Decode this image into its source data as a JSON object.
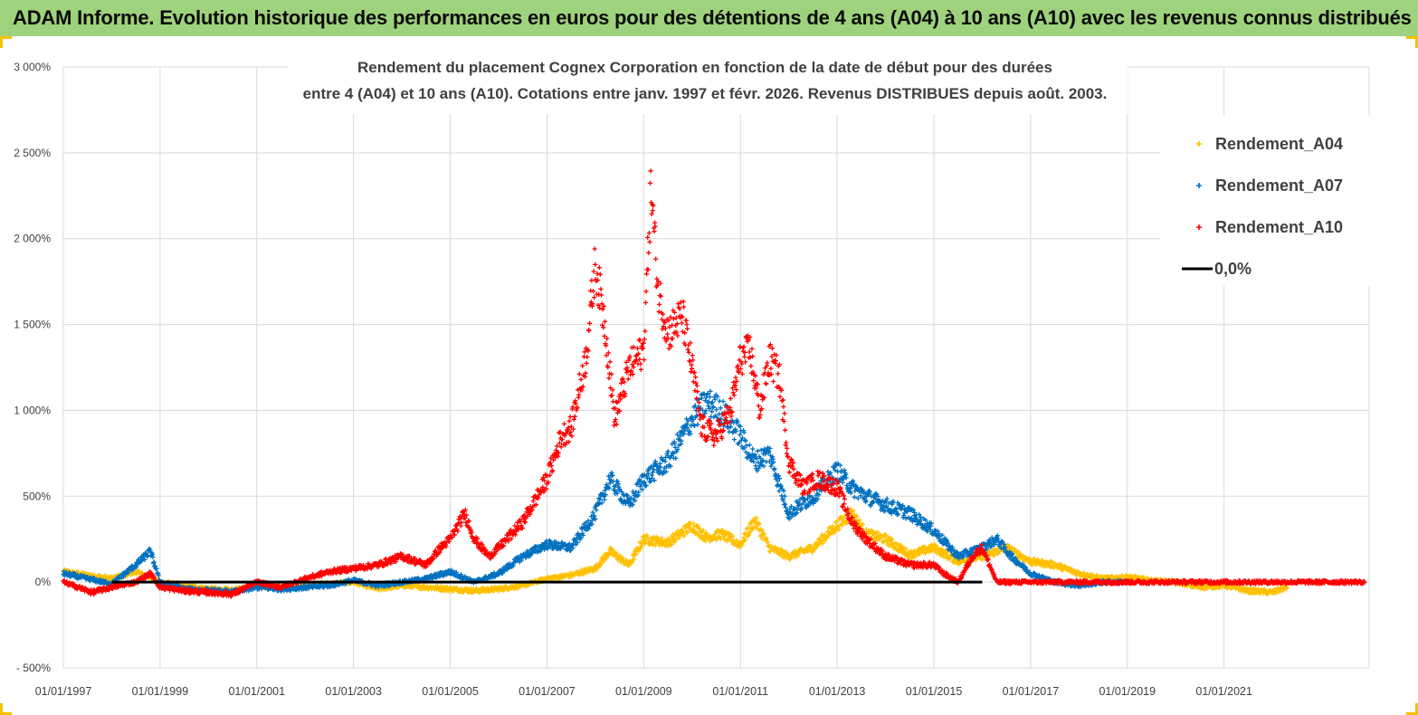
{
  "header": {
    "title": "ADAM Informe. Evolution historique des performances en euros pour des détentions de 4 ans (A04) à 10 ans (A10) avec les revenus connus distribués"
  },
  "colors": {
    "banner": "#9fd27c",
    "A04": "#ffc000",
    "A07": "#0070c0",
    "A10": "#ff0000",
    "zero_line": "#000000",
    "grid": "#d9d9d9"
  },
  "chart_data": {
    "type": "scatter",
    "title_lines": [
      "Rendement du placement Cognex Corporation en fonction de la date de début pour des durées",
      "entre 4 (A04) et 10 ans (A10).  Cotations entre janv. 1997 et févr. 2026. Revenus  DISTRIBUES depuis août. 2003."
    ],
    "xlabel": "",
    "ylabel": "",
    "ylim": [
      -500,
      3000
    ],
    "xlim": [
      1997.0,
      2024.0
    ],
    "y_ticks": [
      -500,
      0,
      500,
      1000,
      1500,
      2000,
      2500,
      3000
    ],
    "y_tick_labels": [
      "- 500%",
      "0%",
      "500%",
      "1 000%",
      "1 500%",
      "2 000%",
      "2 500%",
      "3 000%"
    ],
    "x_ticks": [
      1997,
      1999,
      2001,
      2003,
      2005,
      2007,
      2009,
      2011,
      2013,
      2015,
      2017,
      2019,
      2021
    ],
    "x_tick_labels": [
      "01/01/1997",
      "01/01/1999",
      "01/01/2001",
      "01/01/2003",
      "01/01/2005",
      "01/01/2007",
      "01/01/2009",
      "01/01/2011",
      "01/01/2013",
      "01/01/2015",
      "01/01/2017",
      "01/01/2019",
      "01/01/2021"
    ],
    "legend": {
      "position": "top-right",
      "entries": [
        "Rendement_A04",
        "Rendement_A07",
        "Rendement_A10",
        "0,0%"
      ]
    },
    "series": [
      {
        "name": "Rendement_A04",
        "x": [
          1997.0,
          1997.5,
          1998.0,
          1998.5,
          1998.8,
          1999.0,
          1999.5,
          2000.0,
          2000.5,
          2001.0,
          2001.5,
          2002.0,
          2002.5,
          2003.0,
          2003.5,
          2004.0,
          2004.5,
          2005.0,
          2005.5,
          2006.0,
          2006.5,
          2007.0,
          2007.5,
          2008.0,
          2008.3,
          2008.7,
          2009.0,
          2009.5,
          2010.0,
          2010.3,
          2010.6,
          2011.0,
          2011.3,
          2011.6,
          2012.0,
          2012.5,
          2013.0,
          2013.3,
          2013.6,
          2014.0,
          2014.5,
          2015.0,
          2015.5,
          2016.0,
          2016.5,
          2017.0,
          2017.5,
          2018.0,
          2018.5,
          2019.0,
          2019.5,
          2020.0,
          2020.5,
          2021.0,
          2021.5,
          2022.0,
          2022.3
        ],
        "values": [
          60,
          40,
          20,
          60,
          30,
          0,
          -20,
          -40,
          -50,
          -20,
          -30,
          -20,
          -10,
          0,
          -40,
          -20,
          -30,
          -40,
          -50,
          -40,
          -20,
          20,
          40,
          80,
          180,
          100,
          250,
          230,
          330,
          260,
          280,
          220,
          360,
          200,
          150,
          200,
          330,
          400,
          280,
          250,
          160,
          200,
          120,
          150,
          200,
          120,
          100,
          50,
          20,
          30,
          10,
          0,
          -30,
          -20,
          -50,
          -60,
          -30
        ]
      },
      {
        "name": "Rendement_A07",
        "x": [
          1997.0,
          1997.5,
          1998.0,
          1998.5,
          1998.8,
          1999.0,
          1999.5,
          2000.0,
          2000.5,
          2001.0,
          2001.5,
          2002.0,
          2002.5,
          2003.0,
          2003.5,
          2004.0,
          2004.5,
          2005.0,
          2005.5,
          2006.0,
          2006.5,
          2007.0,
          2007.5,
          2008.0,
          2008.3,
          2008.7,
          2009.0,
          2009.5,
          2010.0,
          2010.3,
          2010.6,
          2011.0,
          2011.3,
          2011.6,
          2012.0,
          2012.5,
          2013.0,
          2013.3,
          2013.6,
          2014.0,
          2014.5,
          2015.0,
          2015.5,
          2016.0,
          2016.3,
          2016.6,
          2017.0,
          2017.5,
          2018.0,
          2018.5,
          2019.0
        ],
        "values": [
          50,
          20,
          -10,
          100,
          180,
          0,
          -40,
          -50,
          -60,
          -30,
          -40,
          -30,
          -20,
          10,
          -20,
          0,
          20,
          60,
          0,
          50,
          150,
          220,
          200,
          400,
          600,
          450,
          600,
          700,
          950,
          1050,
          1000,
          850,
          700,
          750,
          400,
          500,
          650,
          550,
          500,
          450,
          400,
          300,
          150,
          200,
          250,
          150,
          50,
          0,
          -20,
          0,
          0
        ]
      },
      {
        "name": "Rendement_A10",
        "x": [
          1997.0,
          1997.3,
          1997.6,
          1998.0,
          1998.5,
          1998.8,
          1999.0,
          1999.5,
          2000.0,
          2000.5,
          2001.0,
          2001.5,
          2002.0,
          2002.5,
          2003.0,
          2003.5,
          2004.0,
          2004.5,
          2004.8,
          2005.0,
          2005.3,
          2005.5,
          2005.8,
          2006.0,
          2006.5,
          2007.0,
          2007.3,
          2007.5,
          2007.8,
          2008.0,
          2008.2,
          2008.4,
          2008.7,
          2009.0,
          2009.15,
          2009.3,
          2009.5,
          2009.8,
          2010.0,
          2010.2,
          2010.5,
          2010.8,
          2011.0,
          2011.2,
          2011.4,
          2011.6,
          2011.8,
          2012.0,
          2012.3,
          2012.6,
          2013.0,
          2013.3,
          2013.6,
          2014.0,
          2014.5,
          2015.0,
          2015.2,
          2015.5,
          2015.8,
          2016.0,
          2016.3,
          2016.6,
          2017.0,
          2017.5,
          2018.0,
          2018.5,
          2019.0,
          2019.5,
          2020.0,
          2020.5,
          2021.0,
          2021.5,
          2022.0,
          2022.5,
          2023.0,
          2023.5,
          2023.9
        ],
        "values": [
          0,
          -30,
          -60,
          -30,
          0,
          50,
          -30,
          -50,
          -60,
          -70,
          0,
          -30,
          20,
          60,
          80,
          100,
          150,
          100,
          200,
          250,
          400,
          250,
          150,
          200,
          350,
          600,
          850,
          900,
          1300,
          1850,
          1500,
          950,
          1250,
          1350,
          2300,
          1700,
          1450,
          1550,
          1250,
          900,
          850,
          1000,
          1300,
          1350,
          1000,
          1300,
          1200,
          700,
          550,
          600,
          550,
          350,
          250,
          150,
          100,
          100,
          50,
          0,
          150,
          200,
          0,
          0,
          0,
          0,
          0,
          0,
          0,
          0,
          0,
          0,
          0,
          0,
          0,
          0,
          0,
          0,
          0
        ]
      },
      {
        "name": "0,0%",
        "x": [
          1998.0,
          2016.0
        ],
        "values": [
          0,
          0
        ]
      }
    ]
  }
}
